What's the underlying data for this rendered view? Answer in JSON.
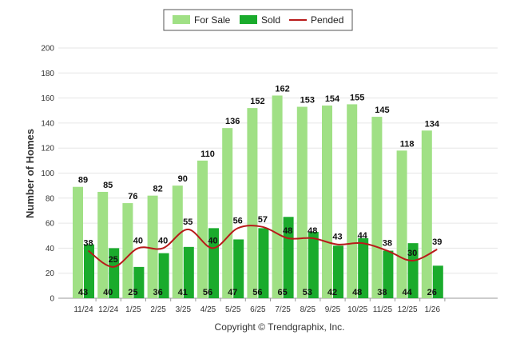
{
  "chart_data": {
    "type": "bar",
    "ylabel": "Number of Homes",
    "ylim": [
      0,
      200
    ],
    "yticks": [
      0,
      20,
      40,
      60,
      80,
      100,
      120,
      140,
      160,
      180,
      200
    ],
    "grid": true,
    "legend_position": "top-center",
    "categories": [
      "11/24",
      "12/24",
      "1/25",
      "2/25",
      "3/25",
      "4/25",
      "5/25",
      "6/25",
      "7/25",
      "8/25",
      "9/25",
      "10/25",
      "11/25",
      "12/25",
      "1/26"
    ],
    "series": [
      {
        "name": "For Sale",
        "type": "bar",
        "color": "#a0e085",
        "values": [
          89,
          85,
          76,
          82,
          90,
          110,
          136,
          152,
          162,
          153,
          154,
          155,
          145,
          118,
          134
        ]
      },
      {
        "name": "Sold",
        "type": "bar",
        "color": "#1aab2c",
        "values": [
          43,
          40,
          25,
          36,
          41,
          56,
          47,
          56,
          65,
          53,
          42,
          48,
          38,
          44,
          26
        ]
      },
      {
        "name": "Pended",
        "type": "line",
        "color": "#b81a1a",
        "values": [
          38,
          25,
          40,
          40,
          55,
          40,
          56,
          57,
          48,
          48,
          43,
          44,
          38,
          30,
          39
        ]
      }
    ]
  },
  "footer": {
    "copyright": "Copyright © Trendgraphix, Inc."
  }
}
